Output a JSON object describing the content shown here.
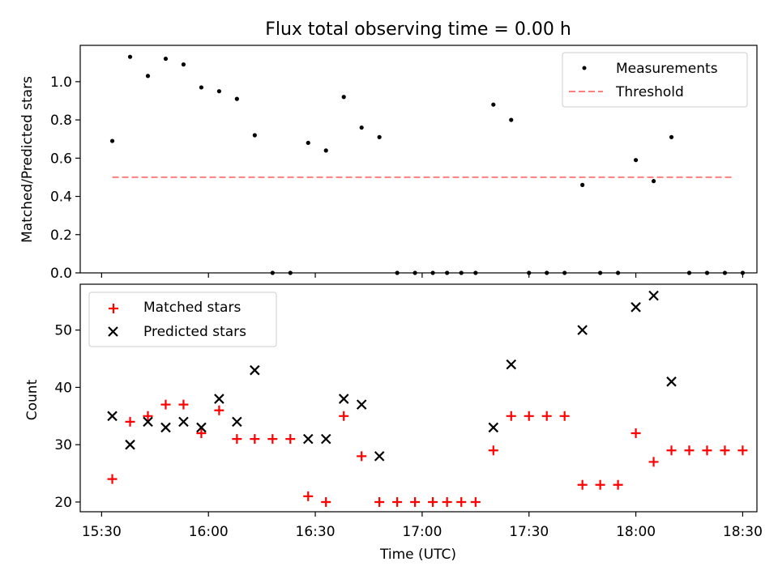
{
  "figure": {
    "title": "Flux total observing time = 0.00 h"
  },
  "chart_data": [
    {
      "type": "scatter",
      "ylabel": "Matched/Predicted stars",
      "ylim": [
        0,
        1.19
      ],
      "yticks": [
        0.0,
        0.2,
        0.4,
        0.6,
        0.8,
        1.0
      ],
      "ytick_labels": [
        "0.0",
        "0.2",
        "0.4",
        "0.6",
        "0.8",
        "1.0"
      ],
      "x_range": [
        "15:24",
        "18:34"
      ],
      "xticks": [
        "15:30",
        "16:00",
        "16:30",
        "17:00",
        "17:30",
        "18:00",
        "18:30"
      ],
      "show_xtick_labels": false,
      "legend_position": "top-right",
      "series": [
        {
          "name": "Measurements",
          "kind": "dots",
          "color": "#000000",
          "x": [
            "15:33",
            "15:38",
            "15:43",
            "15:48",
            "15:53",
            "15:58",
            "16:03",
            "16:08",
            "16:13",
            "16:18",
            "16:23",
            "16:28",
            "16:33",
            "16:38",
            "16:43",
            "16:48",
            "16:53",
            "16:58",
            "17:03",
            "17:07",
            "17:11",
            "17:15",
            "17:20",
            "17:25",
            "17:30",
            "17:35",
            "17:40",
            "17:45",
            "17:50",
            "17:55",
            "18:00",
            "18:05",
            "18:10",
            "18:15",
            "18:20",
            "18:25",
            "18:30"
          ],
          "y": [
            0.69,
            1.13,
            1.03,
            1.12,
            1.09,
            0.97,
            0.95,
            0.91,
            0.72,
            0.0,
            0.0,
            0.68,
            0.64,
            0.92,
            0.76,
            0.71,
            0.0,
            0.0,
            0.0,
            0.0,
            0.0,
            0.0,
            0.88,
            0.8,
            0.0,
            0.0,
            0.0,
            0.46,
            0.0,
            0.0,
            0.59,
            0.48,
            0.71,
            0.0,
            0.0,
            0.0,
            0.0
          ]
        },
        {
          "name": "Threshold",
          "kind": "dashed-line",
          "color": "#ff7f7f",
          "x": [
            "15:33",
            "18:27"
          ],
          "y": [
            0.5,
            0.5
          ]
        }
      ]
    },
    {
      "type": "scatter",
      "ylabel": "Count",
      "xlabel": "Time (UTC)",
      "ylim": [
        18.3,
        58.0
      ],
      "yticks": [
        20,
        30,
        40,
        50
      ],
      "ytick_labels": [
        "20",
        "30",
        "40",
        "50"
      ],
      "x_range": [
        "15:24",
        "18:34"
      ],
      "xticks": [
        "15:30",
        "16:00",
        "16:30",
        "17:00",
        "17:30",
        "18:00",
        "18:30"
      ],
      "xtick_labels": [
        "15:30",
        "16:00",
        "16:30",
        "17:00",
        "17:30",
        "18:00",
        "18:30"
      ],
      "legend_position": "top-left",
      "series": [
        {
          "name": "Matched stars",
          "kind": "plus",
          "color": "#ff0000",
          "x": [
            "15:33",
            "15:38",
            "15:43",
            "15:48",
            "15:53",
            "15:58",
            "16:03",
            "16:08",
            "16:13",
            "16:18",
            "16:23",
            "16:28",
            "16:33",
            "16:38",
            "16:43",
            "16:48",
            "16:53",
            "16:58",
            "17:03",
            "17:07",
            "17:11",
            "17:15",
            "17:20",
            "17:25",
            "17:30",
            "17:35",
            "17:40",
            "17:45",
            "17:50",
            "17:55",
            "18:00",
            "18:05",
            "18:10",
            "18:15",
            "18:20",
            "18:25",
            "18:30"
          ],
          "y": [
            24,
            34,
            35,
            37,
            37,
            32,
            36,
            31,
            31,
            31,
            31,
            21,
            20,
            35,
            28,
            20,
            20,
            20,
            20,
            20,
            20,
            20,
            29,
            35,
            35,
            35,
            35,
            23,
            23,
            23,
            32,
            27,
            29,
            29,
            29,
            29,
            29
          ]
        },
        {
          "name": "Predicted stars",
          "kind": "x",
          "color": "#000000",
          "x": [
            "15:33",
            "15:38",
            "15:43",
            "15:48",
            "15:53",
            "15:58",
            "16:03",
            "16:08",
            "16:13",
            "16:28",
            "16:33",
            "16:38",
            "16:43",
            "16:48",
            "17:20",
            "17:25",
            "17:45",
            "18:00",
            "18:05",
            "18:10"
          ],
          "y": [
            35,
            30,
            34,
            33,
            34,
            33,
            38,
            34,
            43,
            31,
            31,
            38,
            37,
            28,
            33,
            44,
            50,
            54,
            56,
            41
          ]
        }
      ]
    }
  ]
}
